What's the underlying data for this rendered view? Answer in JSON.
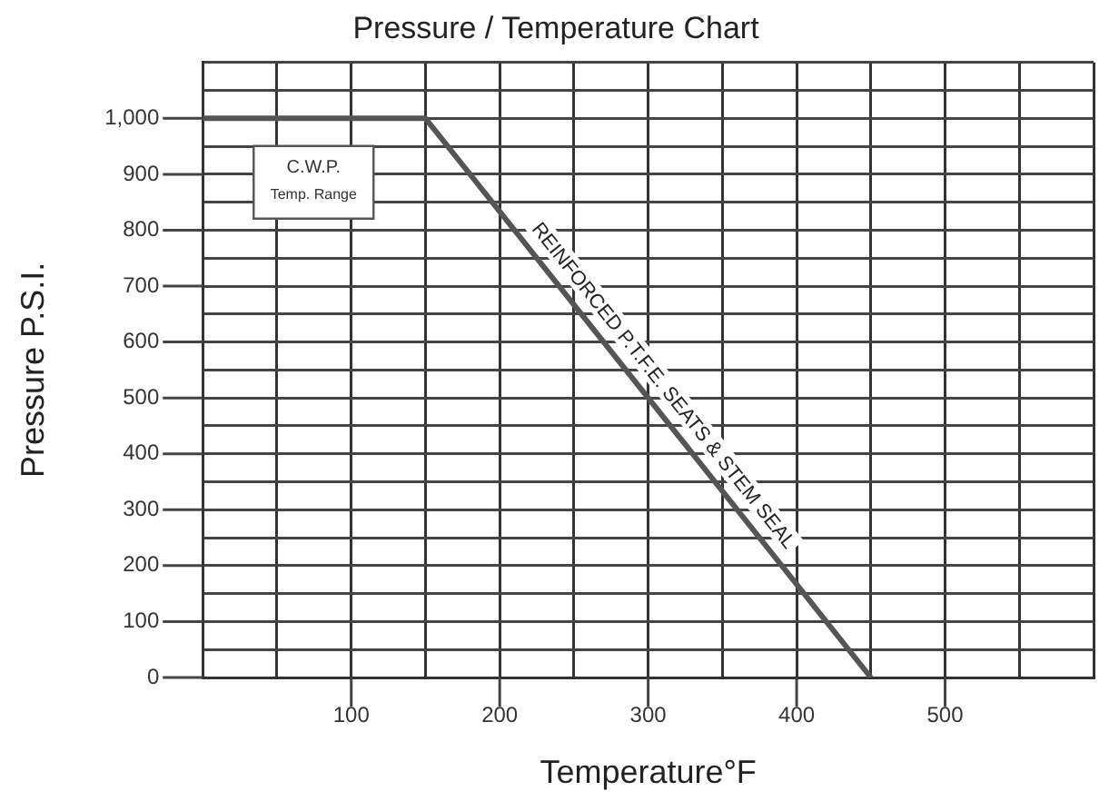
{
  "chart_data": {
    "type": "line",
    "title": "Pressure / Temperature Chart",
    "xlabel": "Temperature°F",
    "ylabel": "Pressure P.S.I.",
    "series": [
      {
        "x": [
          0,
          150,
          450
        ],
        "values": [
          1000,
          1000,
          0
        ],
        "color": "#555555"
      }
    ],
    "xlim": [
      0,
      600
    ],
    "ylim": [
      0,
      1100
    ],
    "xticks": [
      {
        "value": 0,
        "label": null
      },
      {
        "value": 50,
        "label": null
      },
      100,
      {
        "value": 150,
        "label": null
      },
      200,
      {
        "value": 250,
        "label": null
      },
      300,
      {
        "value": 350,
        "label": null
      },
      400,
      {
        "value": 450,
        "label": null
      },
      500,
      {
        "value": 550,
        "label": null
      },
      {
        "value": 600,
        "label": null
      }
    ],
    "yticks": [
      0,
      {
        "value": 50,
        "label": null
      },
      100,
      {
        "value": 150,
        "label": null
      },
      200,
      {
        "value": 250,
        "label": null
      },
      300,
      {
        "value": 350,
        "label": null
      },
      400,
      {
        "value": 450,
        "label": null
      },
      500,
      {
        "value": 550,
        "label": null
      },
      600,
      {
        "value": 650,
        "label": null
      },
      700,
      {
        "value": 750,
        "label": null
      },
      800,
      {
        "value": 850,
        "label": null
      },
      900,
      {
        "value": 950,
        "label": null
      },
      {
        "value": 1000,
        "label": "1,000"
      },
      {
        "value": 1050,
        "label": null
      },
      {
        "value": 1100,
        "label": null
      }
    ],
    "grid": true,
    "marker": "none",
    "line_style": "solid",
    "annotations": [
      "C.W.P.\nTemp. Range",
      {
        "text": "REINFORCED P.T.F.E. SEATS & STEM SEAL",
        "x": 300,
        "y": 500
      }
    ]
  }
}
